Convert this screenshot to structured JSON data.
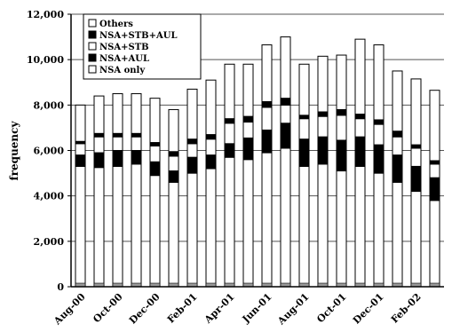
{
  "chart_data": {
    "type": "bar",
    "stacked": true,
    "title": "",
    "xlabel": "",
    "ylabel": "frequency",
    "ylim": [
      0,
      12000
    ],
    "y_ticks": [
      "0",
      "2,000",
      "4,000",
      "6,000",
      "8,000",
      "10,000",
      "12,000"
    ],
    "y_tick_values": [
      0,
      2000,
      4000,
      6000,
      8000,
      10000,
      12000
    ],
    "grid": true,
    "legend_position": "top-left",
    "categories": [
      "Aug-00",
      "Sep-00",
      "Oct-00",
      "Nov-00",
      "Dec-00",
      "Jan-01",
      "Feb-01",
      "Mar-01",
      "Apr-01",
      "May-01",
      "Jun-01",
      "Jul-01",
      "Aug-01",
      "Sep-01",
      "Oct-01",
      "Nov-01",
      "Dec-01",
      "Jan-02",
      "Feb-02",
      "Mar-02"
    ],
    "x_tick_labels": [
      "Aug-00",
      "",
      "Oct-00",
      "",
      "Dec-00",
      "",
      "Feb-01",
      "",
      "Apr-01",
      "",
      "Jun-01",
      "",
      "Aug-01",
      "",
      "Oct-01",
      "",
      "Dec-01",
      "",
      "Feb-02",
      ""
    ],
    "series": [
      {
        "name": "NSA only",
        "fill": "#ffffff",
        "values": [
          5300,
          5250,
          5300,
          5400,
          4900,
          4600,
          5000,
          5200,
          5700,
          5600,
          5900,
          6100,
          5300,
          5400,
          5100,
          5300,
          5000,
          4600,
          4200,
          3800
        ]
      },
      {
        "name": "NSA+AUL",
        "fill": "#000000",
        "values": [
          500,
          650,
          700,
          600,
          600,
          500,
          700,
          600,
          600,
          950,
          1000,
          1100,
          1200,
          1200,
          1350,
          1300,
          1250,
          1200,
          1100,
          1000
        ]
      },
      {
        "name": "NSA+STB",
        "fill": "#ffffff",
        "values": [
          500,
          700,
          600,
          600,
          700,
          650,
          600,
          700,
          900,
          700,
          1000,
          800,
          900,
          900,
          1100,
          800,
          900,
          800,
          800,
          600
        ]
      },
      {
        "name": "NSA+STB+AUL",
        "fill": "#000000",
        "values": [
          100,
          150,
          150,
          150,
          150,
          200,
          200,
          200,
          200,
          250,
          250,
          300,
          150,
          200,
          250,
          200,
          200,
          250,
          150,
          150
        ]
      },
      {
        "name": "Others",
        "fill": "#ffffff",
        "values": [
          1600,
          1650,
          1750,
          1750,
          1950,
          1850,
          2200,
          2400,
          2400,
          2300,
          2500,
          2700,
          2250,
          2450,
          2400,
          3300,
          3300,
          2650,
          2900,
          3100
        ]
      }
    ]
  }
}
